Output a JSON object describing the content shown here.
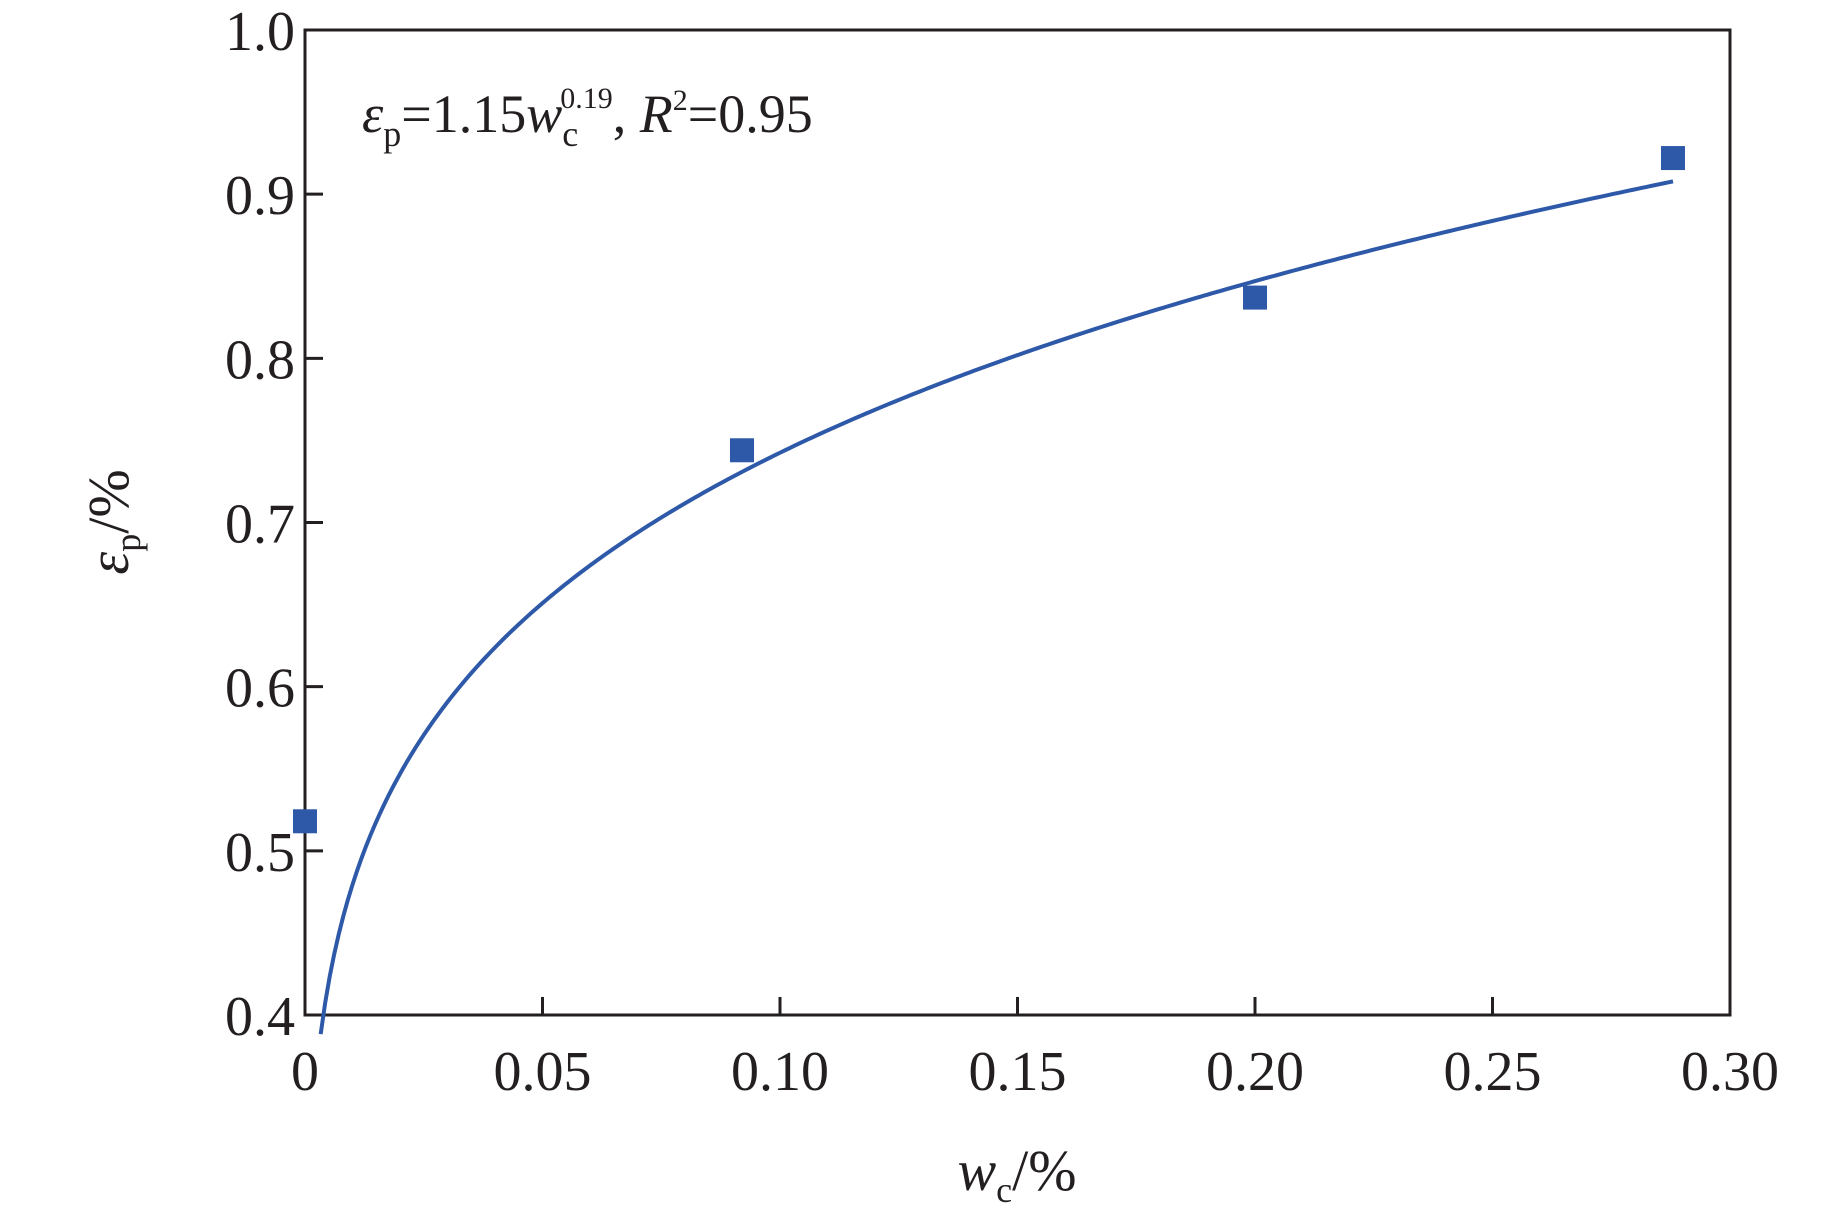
{
  "chart_data": {
    "type": "scatter",
    "x_axis": {
      "label_var": "w",
      "label_sub": "c",
      "label_unit": "/%",
      "range": [
        0,
        0.3
      ],
      "ticks": [
        0,
        0.05,
        0.1,
        0.15,
        0.2,
        0.25,
        0.3
      ],
      "tick_labels": [
        "0",
        "0.05",
        "0.10",
        "0.15",
        "0.20",
        "0.25",
        "0.30"
      ]
    },
    "y_axis": {
      "label_var": "ε",
      "label_sub": "p",
      "label_unit": "/%",
      "range": [
        0.4,
        1.0
      ],
      "ticks": [
        0.4,
        0.5,
        0.6,
        0.7,
        0.8,
        0.9,
        1.0
      ],
      "tick_labels": [
        "0.4",
        "0.5",
        "0.6",
        "0.7",
        "0.8",
        "0.9",
        "1.0"
      ]
    },
    "grid": false,
    "series": [
      {
        "type": "scatter",
        "marker": "square",
        "color": "#2e59a8",
        "points": [
          {
            "x": 0.0,
            "y": 0.518
          },
          {
            "x": 0.092,
            "y": 0.744
          },
          {
            "x": 0.2,
            "y": 0.837
          },
          {
            "x": 0.288,
            "y": 0.922
          }
        ]
      },
      {
        "type": "line",
        "color": "#2e59a8",
        "fit": {
          "a": 1.15,
          "b": 0.19,
          "x_start": 0.0033,
          "x_end": 0.288
        }
      }
    ],
    "annotation": {
      "eps": "ε",
      "eps_sub": "p",
      "eq1": "=1.15",
      "w": "w",
      "w_sub": "c",
      "exp": "0.19",
      "comma": ", ",
      "r": "R",
      "r_sup": "2",
      "eq2": "=0.95"
    }
  }
}
